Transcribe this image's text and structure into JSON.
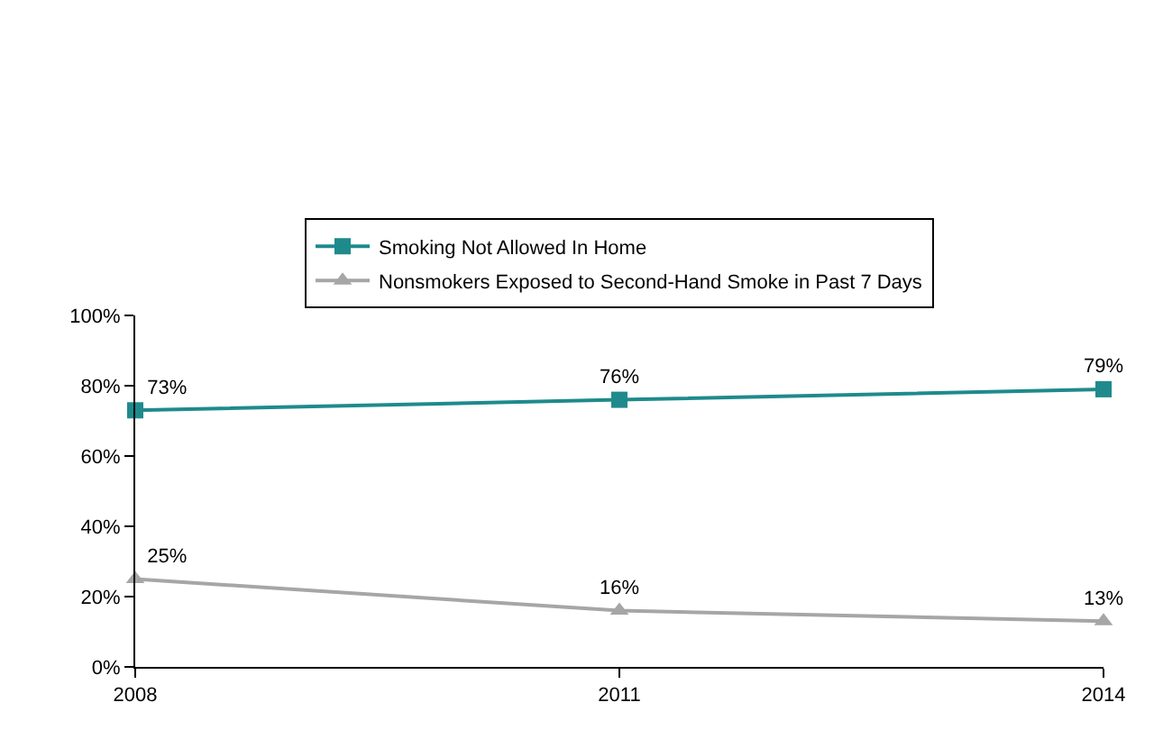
{
  "chart_data": {
    "type": "line",
    "x": [
      2008,
      2011,
      2014
    ],
    "xlim": [
      2008,
      2014
    ],
    "xticks": [
      2008,
      2011,
      2014
    ],
    "ylim": [
      0,
      100
    ],
    "yticks": [
      {
        "value": 0,
        "label": "0%"
      },
      {
        "value": 20,
        "label": "20%"
      },
      {
        "value": 40,
        "label": "40%"
      },
      {
        "value": 60,
        "label": "60%"
      },
      {
        "value": 80,
        "label": "80%"
      },
      {
        "value": 100,
        "label": "100%"
      }
    ],
    "grid": false,
    "legend": "top",
    "series": [
      {
        "name": "Smoking Not Allowed In Home",
        "color": "#1f8a8c",
        "marker": "square",
        "values": [
          73,
          76,
          79
        ],
        "value_labels": [
          "73%",
          "76%",
          "79%"
        ]
      },
      {
        "name": "Nonsmokers Exposed to Second-Hand Smoke in Past 7 Days",
        "color": "#a6a6a6",
        "marker": "triangle",
        "values": [
          25,
          16,
          13
        ],
        "value_labels": [
          "25%",
          "16%",
          "13%"
        ]
      }
    ]
  }
}
